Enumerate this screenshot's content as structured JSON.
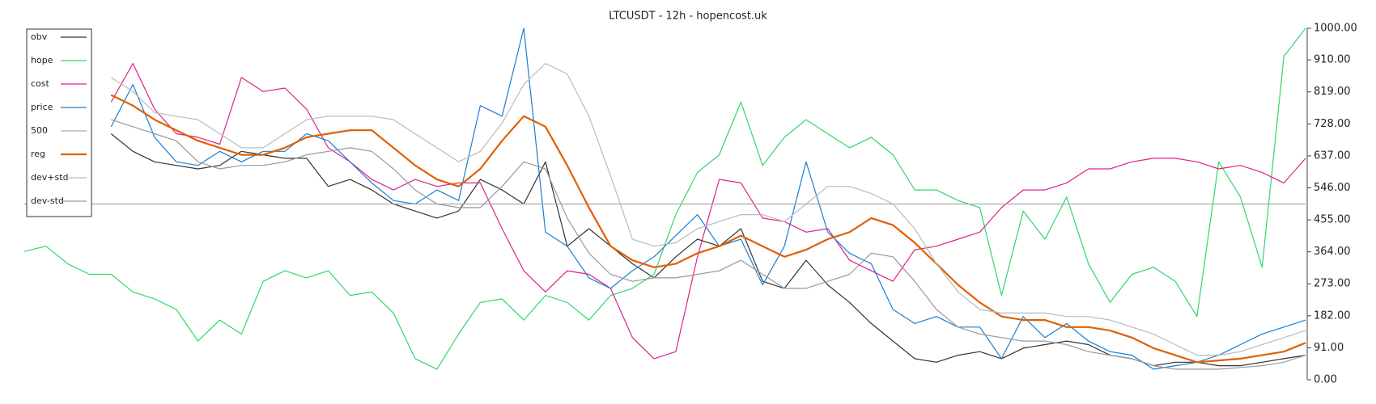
{
  "chart_data": {
    "type": "line",
    "title": "LTCUSDT - 12h - hopencost.uk",
    "ylim": [
      0,
      1000
    ],
    "yticks": [
      {
        "value": 0,
        "label": "0.00"
      },
      {
        "value": 91,
        "label": "91.00"
      },
      {
        "value": 182,
        "label": "182.00"
      },
      {
        "value": 273,
        "label": "273.00"
      },
      {
        "value": 364,
        "label": "364.00"
      },
      {
        "value": 455,
        "label": "455.00"
      },
      {
        "value": 546,
        "label": "546.00"
      },
      {
        "value": 637,
        "label": "637.00"
      },
      {
        "value": 728,
        "label": "728.00"
      },
      {
        "value": 819,
        "label": "819.00"
      },
      {
        "value": 910,
        "label": "910.00"
      },
      {
        "value": 1000,
        "label": "1000.00"
      }
    ],
    "legend": "top-left",
    "series": [
      {
        "name": "obv",
        "color": "#333333",
        "width": 1.2,
        "values": [
          null,
          null,
          null,
          null,
          700,
          650,
          620,
          610,
          600,
          610,
          650,
          640,
          630,
          630,
          550,
          570,
          540,
          500,
          480,
          460,
          480,
          570,
          540,
          500,
          620,
          380,
          430,
          380,
          330,
          290,
          350,
          400,
          380,
          430,
          280,
          260,
          340,
          270,
          220,
          160,
          110,
          60,
          50,
          70,
          80,
          60,
          90,
          100,
          110,
          100,
          70,
          60,
          40,
          50,
          50,
          40,
          40,
          50,
          60,
          70
        ]
      },
      {
        "name": "hope",
        "color": "#2ed86a",
        "width": 1.2,
        "values": [
          365,
          380,
          330,
          300,
          300,
          250,
          230,
          200,
          110,
          170,
          130,
          280,
          310,
          290,
          310,
          240,
          250,
          190,
          60,
          30,
          130,
          220,
          230,
          170,
          240,
          220,
          170,
          240,
          260,
          300,
          470,
          590,
          640,
          790,
          610,
          690,
          740,
          700,
          660,
          690,
          640,
          540,
          540,
          510,
          490,
          240,
          480,
          400,
          520,
          330,
          220,
          300,
          320,
          280,
          180,
          620,
          520,
          320,
          920,
          1000
        ]
      },
      {
        "name": "cost",
        "color": "#e0208a",
        "width": 1.2,
        "values": [
          null,
          null,
          null,
          null,
          790,
          900,
          770,
          700,
          690,
          670,
          860,
          820,
          830,
          770,
          660,
          620,
          570,
          540,
          570,
          550,
          560,
          560,
          430,
          310,
          250,
          310,
          300,
          260,
          120,
          60,
          80,
          350,
          570,
          560,
          460,
          450,
          420,
          430,
          340,
          310,
          280,
          370,
          380,
          400,
          420,
          490,
          540,
          540,
          560,
          600,
          600,
          620,
          630,
          630,
          620,
          600,
          610,
          590,
          560,
          630
        ]
      },
      {
        "name": "price",
        "color": "#1a7fd4",
        "width": 1.2,
        "values": [
          null,
          null,
          null,
          null,
          720,
          840,
          690,
          620,
          610,
          650,
          620,
          650,
          650,
          700,
          680,
          620,
          560,
          510,
          500,
          540,
          510,
          780,
          750,
          1000,
          420,
          380,
          290,
          260,
          310,
          350,
          410,
          470,
          380,
          400,
          270,
          380,
          620,
          420,
          360,
          330,
          200,
          160,
          180,
          150,
          150,
          60,
          180,
          120,
          160,
          110,
          80,
          70,
          30,
          40,
          50,
          70,
          100,
          130,
          150,
          170
        ]
      },
      {
        "name": "500",
        "color": "#aaaaaa",
        "width": 1.2,
        "values": [
          500,
          500,
          500,
          500,
          500,
          500,
          500,
          500,
          500,
          500,
          500,
          500,
          500,
          500,
          500,
          500,
          500,
          500,
          500,
          500,
          500,
          500,
          500,
          500,
          500,
          500,
          500,
          500,
          500,
          500,
          500,
          500,
          500,
          500,
          500,
          500,
          500,
          500,
          500,
          500,
          500,
          500,
          500,
          500,
          500,
          500,
          500,
          500,
          500,
          500,
          500,
          500,
          500,
          500,
          500,
          500,
          500,
          500,
          500,
          500
        ]
      },
      {
        "name": "reg",
        "color": "#e06000",
        "width": 2.2,
        "values": [
          null,
          null,
          null,
          null,
          810,
          780,
          740,
          710,
          680,
          660,
          640,
          640,
          660,
          690,
          700,
          710,
          710,
          660,
          610,
          570,
          550,
          600,
          680,
          750,
          720,
          610,
          490,
          380,
          340,
          320,
          330,
          360,
          380,
          410,
          380,
          350,
          370,
          400,
          420,
          460,
          440,
          390,
          330,
          270,
          220,
          180,
          170,
          170,
          150,
          150,
          140,
          120,
          90,
          70,
          50,
          55,
          60,
          70,
          80,
          105
        ]
      },
      {
        "name": "dev+std",
        "color": "#bbbbbb",
        "width": 1.2,
        "values": [
          null,
          null,
          null,
          null,
          860,
          820,
          760,
          750,
          740,
          700,
          660,
          660,
          700,
          740,
          750,
          750,
          750,
          740,
          700,
          660,
          620,
          650,
          730,
          840,
          900,
          870,
          750,
          580,
          400,
          380,
          390,
          430,
          450,
          470,
          470,
          450,
          500,
          550,
          550,
          530,
          500,
          430,
          330,
          250,
          200,
          190,
          190,
          190,
          180,
          180,
          170,
          150,
          130,
          100,
          70,
          70,
          80,
          100,
          120,
          140
        ]
      },
      {
        "name": "dev-std",
        "color": "#999999",
        "width": 1.2,
        "values": [
          null,
          null,
          null,
          null,
          740,
          720,
          700,
          680,
          620,
          600,
          610,
          610,
          620,
          640,
          650,
          660,
          650,
          600,
          540,
          500,
          490,
          490,
          550,
          620,
          600,
          460,
          360,
          300,
          280,
          290,
          290,
          300,
          310,
          340,
          300,
          260,
          260,
          280,
          300,
          360,
          350,
          280,
          200,
          150,
          130,
          120,
          110,
          110,
          100,
          80,
          70,
          60,
          40,
          30,
          30,
          30,
          35,
          40,
          50,
          70
        ]
      }
    ]
  }
}
